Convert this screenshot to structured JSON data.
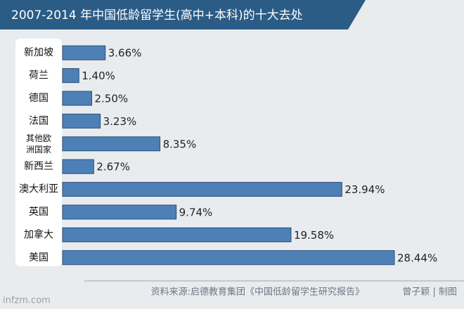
{
  "chart_data": {
    "type": "hbar",
    "title": "2007-2014 年中国低龄留学生(高中+本科)的十大去处",
    "categories": [
      "新加坡",
      "荷兰",
      "德国",
      "法国",
      "其他欧洲国家",
      "新西兰",
      "澳大利亚",
      "英国",
      "加拿大",
      "美国"
    ],
    "values": [
      3.66,
      1.4,
      2.5,
      3.23,
      8.35,
      2.67,
      23.94,
      9.74,
      19.58,
      28.44
    ],
    "value_labels": [
      "3.66%",
      "1.40%",
      "2.50%",
      "3.23%",
      "8.35%",
      "2.67%",
      "23.94%",
      "9.74%",
      "19.58%",
      "28.44%"
    ],
    "color": "#4d80b6",
    "source": "资料来源:启德教育集团《中国低龄留学生研究报告》",
    "credit": "曾子颖 | 制图",
    "watermark": "infzm.com"
  }
}
